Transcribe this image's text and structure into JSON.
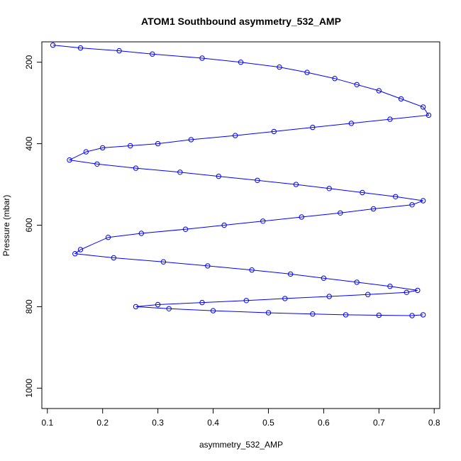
{
  "chart_data": {
    "type": "scatter",
    "title": "ATOM1 Southbound asymmetry_532_AMP",
    "xlabel": "asymmetry_532_AMP",
    "ylabel": "Pressure (mbar)",
    "xlim": [
      0.09,
      0.81
    ],
    "ylim": [
      1050,
      150
    ],
    "y_reversed": true,
    "xticks": [
      0.1,
      0.2,
      0.3,
      0.4,
      0.5,
      0.6,
      0.7,
      0.8
    ],
    "xtick_labels": [
      "0.1",
      "0.2",
      "0.3",
      "0.4",
      "0.5",
      "0.6",
      "0.7",
      "0.8"
    ],
    "yticks": [
      200,
      400,
      600,
      800,
      1000
    ],
    "ytick_labels": [
      "200",
      "400",
      "600",
      "800",
      "1000"
    ],
    "grid": false,
    "legend": "none",
    "series_color": "#0000ff",
    "marker": "open-circle",
    "connected": true,
    "pressure_range": [
      155,
      822
    ],
    "x_center": 0.55,
    "series": [
      {
        "x": [
          0.11,
          0.16,
          0.23,
          0.29,
          0.38,
          0.45,
          0.52,
          0.57,
          0.62,
          0.66,
          0.7,
          0.74,
          0.78,
          0.79,
          0.72,
          0.65,
          0.58,
          0.51,
          0.44,
          0.36,
          0.3,
          0.25,
          0.2,
          0.17,
          0.14,
          0.19,
          0.26,
          0.34,
          0.41,
          0.48,
          0.55,
          0.61,
          0.67,
          0.73,
          0.78,
          0.76,
          0.69,
          0.63,
          0.56,
          0.49,
          0.42,
          0.35,
          0.27,
          0.21,
          0.16,
          0.15,
          0.22,
          0.31,
          0.39,
          0.47,
          0.54,
          0.6,
          0.66,
          0.72,
          0.77,
          0.75,
          0.68,
          0.61,
          0.53,
          0.46,
          0.38,
          0.3,
          0.26,
          0.32,
          0.4,
          0.5,
          0.58,
          0.64,
          0.7,
          0.76,
          0.78
        ],
        "y": [
          158,
          165,
          172,
          180,
          190,
          200,
          212,
          225,
          240,
          255,
          270,
          290,
          310,
          330,
          340,
          350,
          360,
          370,
          380,
          390,
          400,
          405,
          410,
          420,
          440,
          450,
          460,
          470,
          480,
          490,
          500,
          510,
          520,
          530,
          540,
          550,
          560,
          570,
          580,
          590,
          600,
          610,
          620,
          630,
          660,
          670,
          680,
          690,
          700,
          710,
          720,
          730,
          740,
          750,
          760,
          765,
          770,
          775,
          780,
          785,
          790,
          795,
          800,
          805,
          810,
          815,
          818,
          820,
          821,
          822,
          820
        ]
      }
    ]
  }
}
